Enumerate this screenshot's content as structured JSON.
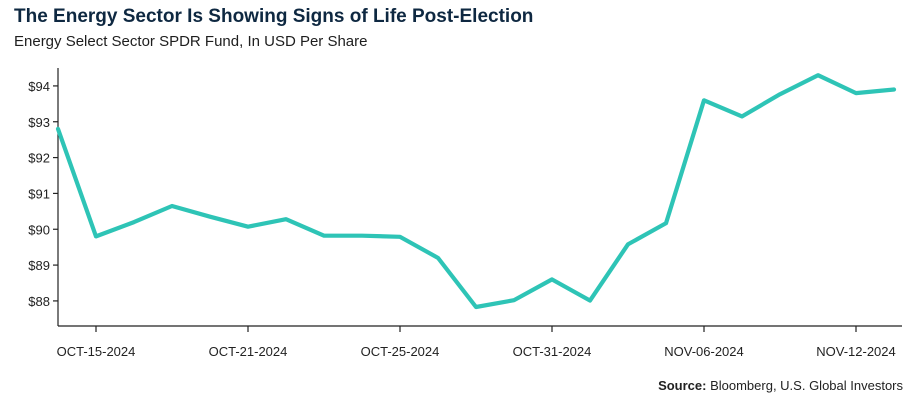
{
  "chart_data": {
    "type": "line",
    "title": "The Energy Sector Is Showing Signs of Life Post-Election",
    "subtitle": "Energy Select Sector SPDR Fund, In USD Per Share",
    "ylim": [
      87.3,
      94.5
    ],
    "y_ticks": [
      88,
      89,
      90,
      91,
      92,
      93,
      94
    ],
    "y_tick_labels": [
      "$88",
      "$89",
      "$90",
      "$91",
      "$92",
      "$93",
      "$94"
    ],
    "x_tick_labels": [
      {
        "index": 1,
        "label": "OCT-15-2024"
      },
      {
        "index": 5,
        "label": "OCT-21-2024"
      },
      {
        "index": 9,
        "label": "OCT-25-2024"
      },
      {
        "index": 13,
        "label": "OCT-31-2024"
      },
      {
        "index": 17,
        "label": "NOV-06-2024"
      },
      {
        "index": 21,
        "label": "NOV-12-2024"
      }
    ],
    "series": [
      {
        "color": "#2ec4b6",
        "values": [
          92.8,
          89.8,
          90.2,
          90.65,
          90.35,
          90.07,
          90.28,
          89.82,
          89.82,
          89.79,
          89.2,
          87.83,
          88.02,
          88.6,
          88.01,
          89.58,
          90.17,
          93.6,
          93.15,
          93.77,
          94.3,
          93.8,
          93.9
        ]
      }
    ],
    "grid": false,
    "legend": "none"
  },
  "source": {
    "label": "Source:",
    "text": " Bloomberg, U.S. Global Investors"
  }
}
